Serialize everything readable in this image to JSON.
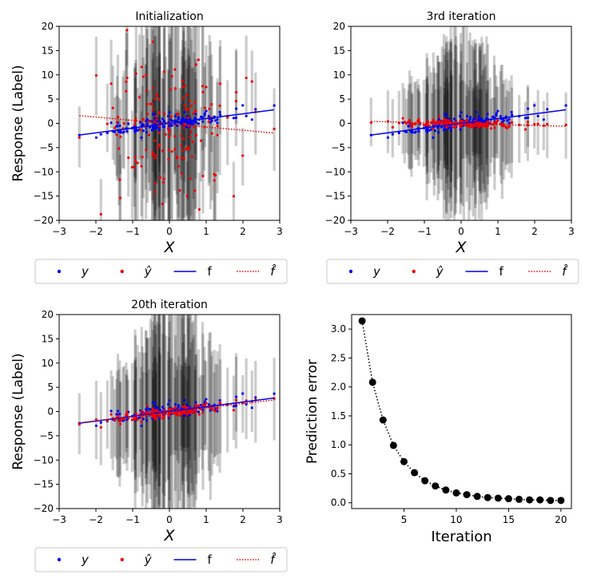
{
  "chart_data": [
    {
      "id": "initialization",
      "type": "scatter",
      "title": "Initialization",
      "xlabel": "X",
      "ylabel": "Response (Label)",
      "xlim": [
        -3,
        3
      ],
      "ylim": [
        -20,
        20
      ],
      "xticks": [
        -3,
        -2,
        -1,
        0,
        1,
        2,
        3
      ],
      "yticks": [
        -20,
        -15,
        -10,
        -5,
        0,
        5,
        10,
        15,
        20
      ],
      "true_line": {
        "x": [
          -2.45,
          2.85
        ],
        "y": [
          -2.4,
          2.8
        ]
      },
      "fitted_line": {
        "x": [
          -2.45,
          2.85
        ],
        "y": [
          1.6,
          -2.0
        ]
      },
      "pred_spread": 7.5,
      "err_scale": 1.0
    },
    {
      "id": "iteration-3",
      "type": "scatter",
      "title": "3rd iteration",
      "xlabel": "X",
      "ylabel": "",
      "xlim": [
        -3,
        3
      ],
      "ylim": [
        -20,
        20
      ],
      "xticks": [
        -3,
        -2,
        -1,
        0,
        1,
        2,
        3
      ],
      "yticks": [
        -20,
        -15,
        -10,
        -5,
        0,
        5,
        10,
        15,
        20
      ],
      "true_line": {
        "x": [
          -2.45,
          2.85
        ],
        "y": [
          -2.4,
          2.8
        ]
      },
      "fitted_line": {
        "x": [
          -2.45,
          2.85
        ],
        "y": [
          0.4,
          -0.6
        ]
      },
      "pred_spread": 0.35,
      "err_scale": 0.8
    },
    {
      "id": "iteration-20",
      "type": "scatter",
      "title": "20th iteration",
      "xlabel": "X",
      "ylabel": "Response (Label)",
      "xlim": [
        -3,
        3
      ],
      "ylim": [
        -20,
        20
      ],
      "xticks": [
        -3,
        -2,
        -1,
        0,
        1,
        2,
        3
      ],
      "yticks": [
        -20,
        -15,
        -10,
        -5,
        0,
        5,
        10,
        15,
        20
      ],
      "true_line": {
        "x": [
          -2.45,
          2.85
        ],
        "y": [
          -2.4,
          2.8
        ]
      },
      "fitted_line": {
        "x": [
          -2.45,
          2.85
        ],
        "y": [
          -2.3,
          2.4
        ]
      },
      "pred_spread": 0.5,
      "err_scale": 1.0
    },
    {
      "id": "prediction-error",
      "type": "line",
      "title": "",
      "xlabel": "Iteration",
      "ylabel": "Prediction error",
      "xlim": [
        0,
        21
      ],
      "ylim": [
        -0.1,
        3.25
      ],
      "xticks": [
        5,
        10,
        15,
        20
      ],
      "yticks": [
        0.0,
        0.5,
        1.0,
        1.5,
        2.0,
        2.5,
        3.0
      ],
      "x": [
        1,
        2,
        3,
        4,
        5,
        6,
        7,
        8,
        9,
        10,
        11,
        12,
        13,
        14,
        15,
        16,
        17,
        18,
        19,
        20
      ],
      "y": [
        3.14,
        2.08,
        1.43,
        0.99,
        0.71,
        0.52,
        0.38,
        0.29,
        0.22,
        0.17,
        0.14,
        0.11,
        0.09,
        0.08,
        0.07,
        0.06,
        0.05,
        0.05,
        0.04,
        0.04
      ]
    }
  ],
  "legend": {
    "items": [
      {
        "label": "y",
        "style": "marker",
        "color": "#0000ee"
      },
      {
        "label": "ŷ",
        "style": "marker",
        "color": "#ee0000"
      },
      {
        "label": "f",
        "style": "solid",
        "color": "#0000ee"
      },
      {
        "label": "f̂",
        "style": "dotted",
        "color": "#ee0000"
      }
    ]
  },
  "colors": {
    "true": "#0000ee",
    "pred": "#ee0000",
    "errbar": "#000000",
    "error_curve": "#000000"
  }
}
